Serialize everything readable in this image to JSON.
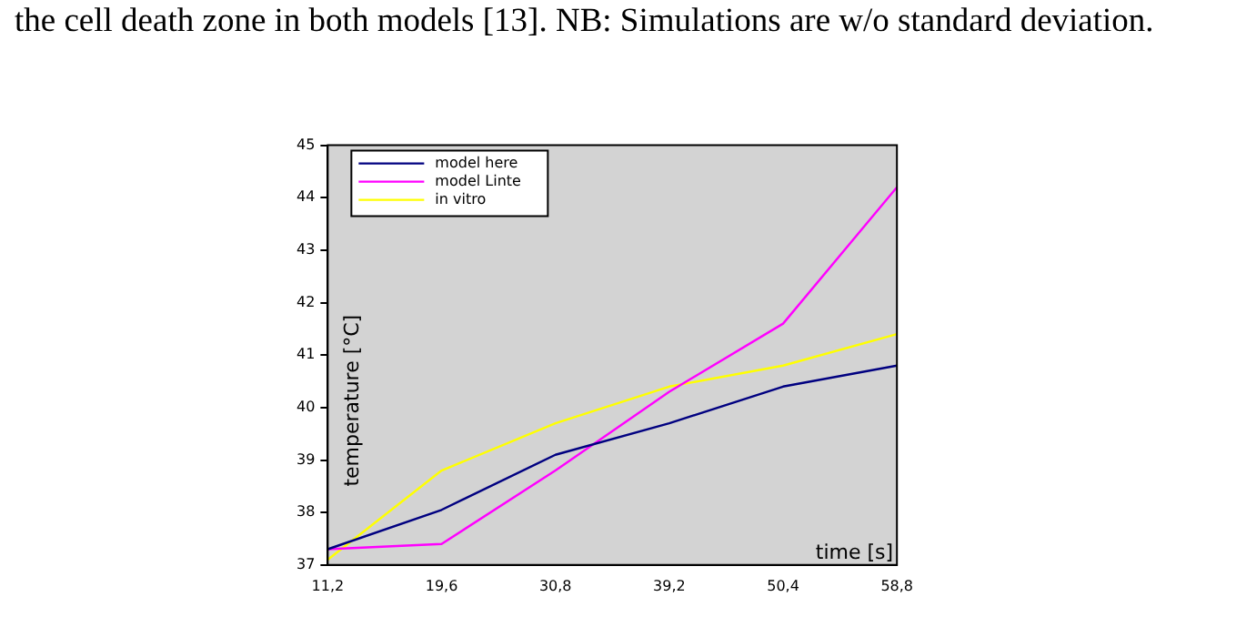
{
  "chart_data": {
    "type": "line",
    "annotations": [
      "the cell death zone in both models [13]. NB: Simulations are w/o standard deviation."
    ],
    "xlabel": "time [s]",
    "ylabel": "temperature [°C]",
    "categories": [
      "11,2",
      "19,6",
      "30,8",
      "39,2",
      "50,4",
      "58,8"
    ],
    "series": [
      {
        "name": "model here",
        "color": "#000080",
        "values": [
          37.3,
          38.05,
          39.1,
          39.7,
          40.4,
          40.8
        ]
      },
      {
        "name": "model Linte",
        "color": "#ff00ff",
        "values": [
          37.3,
          37.4,
          38.8,
          40.3,
          41.6,
          44.2
        ]
      },
      {
        "name": "in vitro",
        "color": "#ffff00",
        "values": [
          37.1,
          38.8,
          39.7,
          40.4,
          40.8,
          41.4
        ]
      }
    ],
    "ylim": [
      37,
      45
    ],
    "yticks": [
      37,
      38,
      39,
      40,
      41,
      42,
      43,
      44,
      45
    ],
    "grid": false,
    "legend": "top left",
    "marker": "none",
    "line_style": "solid"
  }
}
